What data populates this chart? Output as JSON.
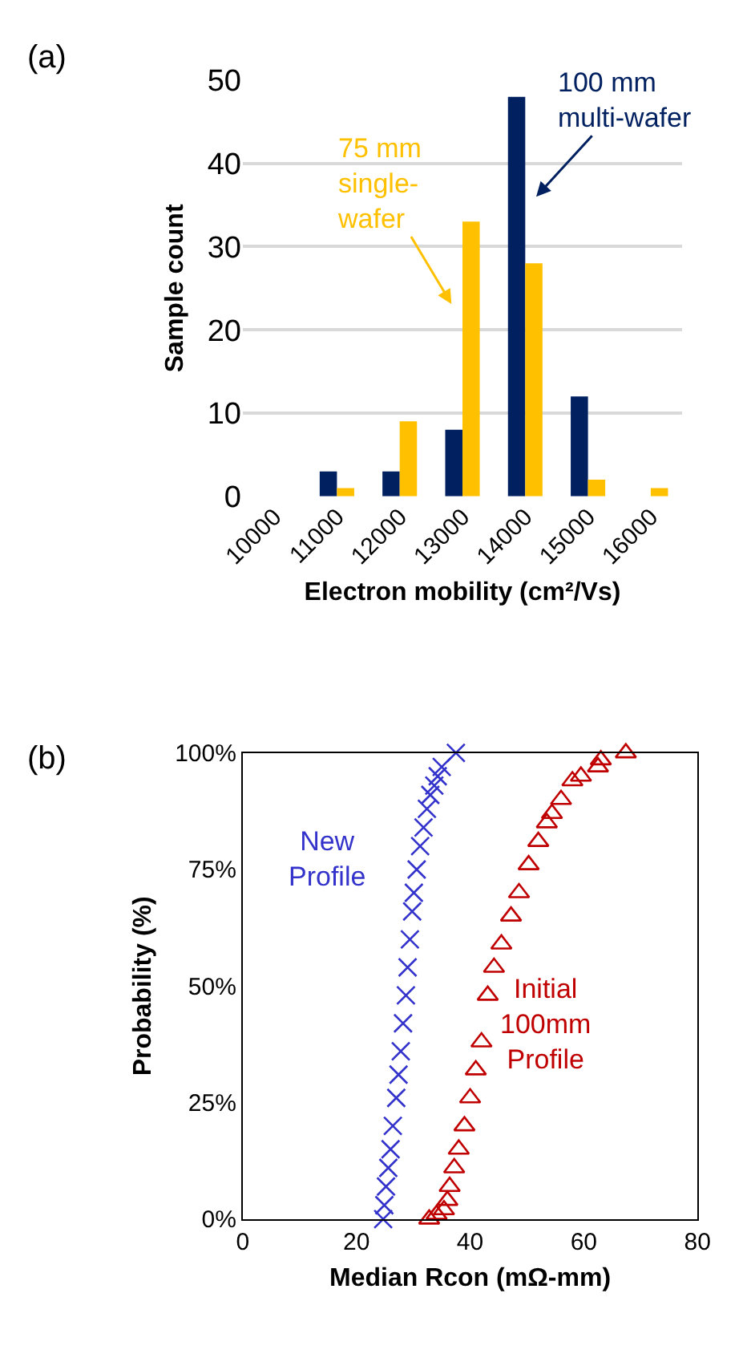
{
  "chart_data": [
    {
      "type": "bar",
      "title": "(a)",
      "xlabel": "Electron mobility (cm²/Vs)",
      "ylabel": "Sample count",
      "categories": [
        "10000",
        "11000",
        "12000",
        "13000",
        "14000",
        "15000",
        "16000"
      ],
      "series": [
        {
          "name": "100 mm\nmulti-wafer",
          "color": "#002060",
          "values": [
            0,
            3,
            3,
            8,
            48,
            12,
            0
          ]
        },
        {
          "name": "75 mm\nsingle-\nwafer",
          "color": "#ffc000",
          "values": [
            0,
            1,
            9,
            33,
            28,
            2,
            1
          ]
        }
      ],
      "ylim": [
        0,
        50
      ],
      "yticks": [
        0,
        10,
        20,
        30,
        40,
        50
      ],
      "grid": "y",
      "legend": false
    },
    {
      "type": "scatter",
      "title": "(b)",
      "xlabel": "Median Rcon (mΩ-mm)",
      "ylabel": "Probability (%)",
      "series": [
        {
          "name": "New\nProfile",
          "color": "#3333cc",
          "marker": "cross",
          "x": [
            24.7,
            24.9,
            25.2,
            25.6,
            26.0,
            26.4,
            27.0,
            27.4,
            27.8,
            28.2,
            28.7,
            29.0,
            29.4,
            29.8,
            30.1,
            30.6,
            31.2,
            31.8,
            32.4,
            33.0,
            33.7,
            34.3,
            35.0,
            37.5
          ],
          "values": [
            0,
            3,
            7,
            11,
            15,
            20,
            26,
            31,
            36,
            42,
            48,
            54,
            60,
            66,
            70,
            75,
            80,
            84,
            88,
            91,
            93,
            95,
            97,
            100
          ]
        },
        {
          "name": "Initial\n100mm\nProfile",
          "color": "#c00000",
          "marker": "triangle",
          "x": [
            32.8,
            34.1,
            35.4,
            36.0,
            36.4,
            37.2,
            38.0,
            39.0,
            40.0,
            41.0,
            42.0,
            43.1,
            44.2,
            45.5,
            47.2,
            48.6,
            50.3,
            52.0,
            53.5,
            54.4,
            56.0,
            58.0,
            59.5,
            62.5,
            63.0,
            67.4
          ],
          "values": [
            0,
            1,
            2,
            4,
            7,
            11,
            15,
            20,
            26,
            32,
            38,
            48,
            54,
            59,
            65,
            70,
            76,
            81,
            85,
            87,
            90,
            94,
            95,
            97,
            98.5,
            100
          ]
        }
      ],
      "xlim": [
        0,
        80
      ],
      "xticks": [
        0,
        20,
        40,
        60,
        80
      ],
      "ylim": [
        0,
        100
      ],
      "yticks": [
        {
          "value": 0,
          "label": "0%"
        },
        {
          "value": 25,
          "label": "25%"
        },
        {
          "value": 50,
          "label": "50%"
        },
        {
          "value": 75,
          "label": "75%"
        },
        {
          "value": 100,
          "label": "100%"
        }
      ],
      "grid": false,
      "legend": false
    }
  ]
}
